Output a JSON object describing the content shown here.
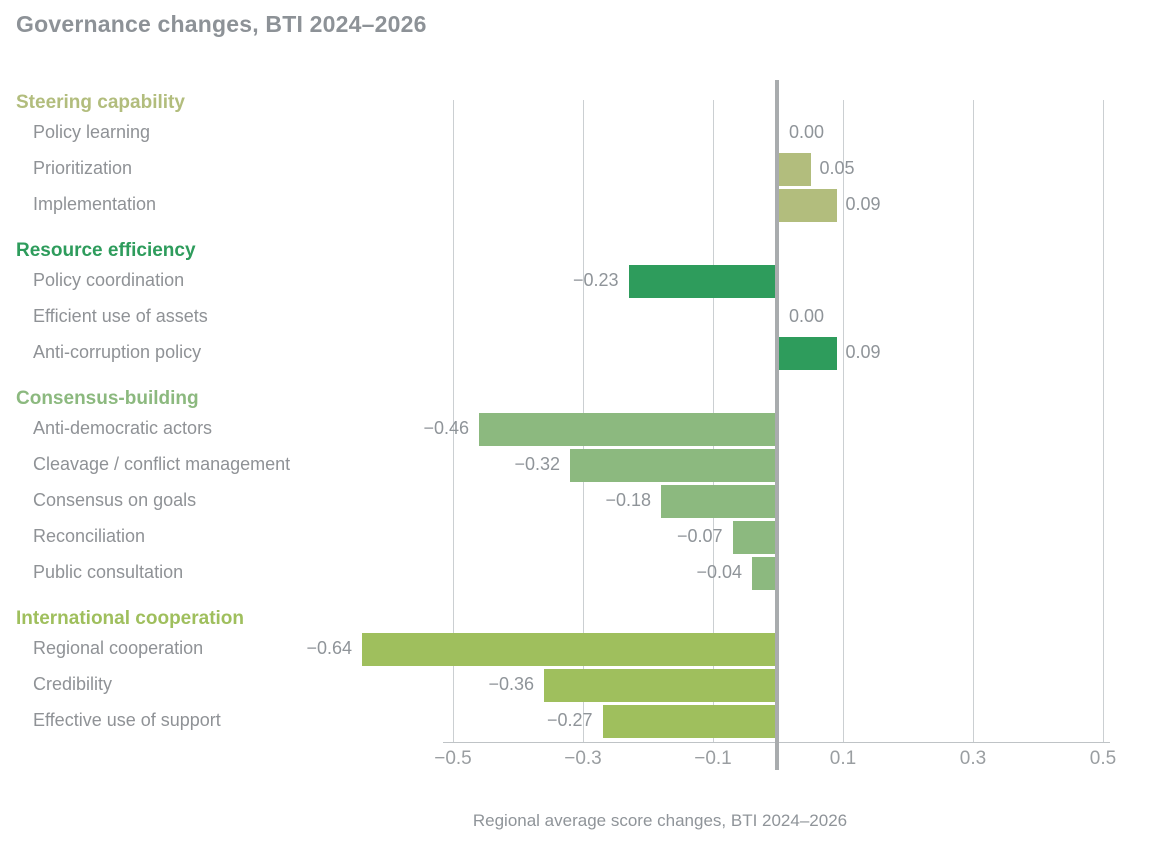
{
  "title": "Governance changes, BTI 2024–2026",
  "caption": "Regional average score changes, BTI 2024–2026",
  "colors": {
    "steering_capability": "#b2bd7d",
    "resource_efficiency": "#2e9c5c",
    "consensus_building": "#8cb97f",
    "international_cooperation": "#9fbf5d",
    "gridline": "#cbcfd2",
    "zero_line": "#a9acae",
    "text_gray": "#8f9296"
  },
  "chart_data": {
    "type": "bar",
    "orientation": "horizontal",
    "title": "Governance changes, BTI 2024–2026",
    "xlabel": "Regional average score changes, BTI 2024–2026",
    "xlim": [
      -0.5,
      0.5
    ],
    "x_ticks": [
      -0.5,
      -0.3,
      -0.1,
      0.1,
      0.3,
      0.5
    ],
    "x_tick_labels": [
      "−0.5",
      "−0.3",
      "−0.1",
      "0.1",
      "0.3",
      "0.5"
    ],
    "grid": true,
    "zero_axis": true,
    "groups": [
      {
        "name": "Steering capability",
        "color": "#b2bd7d",
        "items": [
          {
            "label": "Policy learning",
            "value": 0.0,
            "value_label": "0.00"
          },
          {
            "label": "Prioritization",
            "value": 0.05,
            "value_label": "0.05"
          },
          {
            "label": "Implementation",
            "value": 0.09,
            "value_label": "0.09"
          }
        ]
      },
      {
        "name": "Resource efficiency",
        "color": "#2e9c5c",
        "items": [
          {
            "label": "Policy coordination",
            "value": -0.23,
            "value_label": "−0.23"
          },
          {
            "label": "Efficient use of assets",
            "value": 0.0,
            "value_label": "0.00"
          },
          {
            "label": "Anti-corruption policy",
            "value": 0.09,
            "value_label": "0.09"
          }
        ]
      },
      {
        "name": "Consensus-building",
        "color": "#8cb97f",
        "items": [
          {
            "label": "Anti-democratic actors",
            "value": -0.46,
            "value_label": "−0.46"
          },
          {
            "label": "Cleavage / conflict management",
            "value": -0.32,
            "value_label": "−0.32"
          },
          {
            "label": "Consensus on goals",
            "value": -0.18,
            "value_label": "−0.18"
          },
          {
            "label": "Reconciliation",
            "value": -0.07,
            "value_label": "−0.07"
          },
          {
            "label": "Public consultation",
            "value": -0.04,
            "value_label": "−0.04"
          }
        ]
      },
      {
        "name": "International cooperation",
        "color": "#9fbf5d",
        "items": [
          {
            "label": "Regional cooperation",
            "value": -0.64,
            "value_label": "−0.64"
          },
          {
            "label": "Credibility",
            "value": -0.36,
            "value_label": "−0.36"
          },
          {
            "label": "Effective use of support",
            "value": -0.27,
            "value_label": "−0.27"
          }
        ]
      }
    ]
  }
}
